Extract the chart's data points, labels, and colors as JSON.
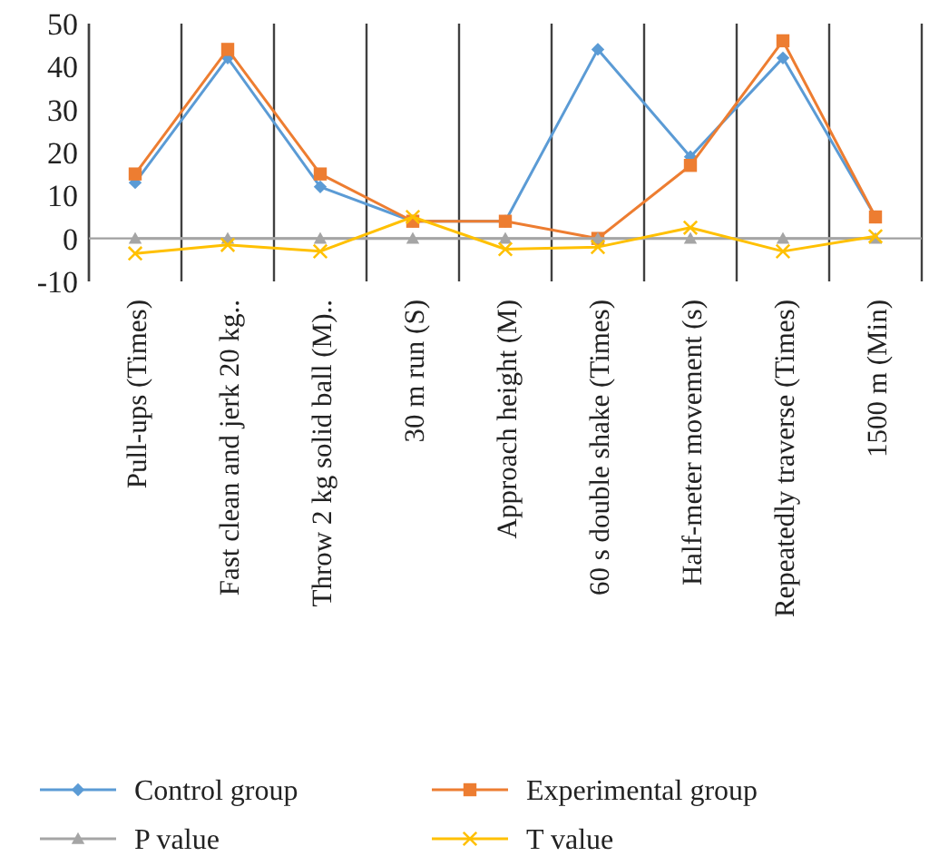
{
  "chart_data": {
    "type": "line",
    "categories": [
      "Pull-ups (Times)",
      "Fast clean and jerk 20 kg..",
      "Throw 2 kg solid ball (M)..",
      "30 m run (S)",
      "Approach height (M)",
      "60 s double shake (Times)",
      "Half-meter movement (s)",
      "Repeatedly traverse (Times)",
      "1500 m (Min)"
    ],
    "series": [
      {
        "name": "Control group",
        "color": "#5b9bd5",
        "marker": "diamond",
        "values": [
          13,
          42,
          12,
          4,
          4,
          44,
          19,
          42,
          5
        ]
      },
      {
        "name": "Experimental group",
        "color": "#ed7d31",
        "marker": "square",
        "values": [
          15,
          44,
          15,
          4,
          4,
          0,
          17,
          46,
          5
        ]
      },
      {
        "name": "P value",
        "color": "#a5a5a5",
        "marker": "triangle",
        "values": [
          0,
          0,
          0,
          0,
          0,
          0,
          0,
          0,
          0
        ]
      },
      {
        "name": "T value",
        "color": "#ffc000",
        "marker": "cross",
        "values": [
          -3.5,
          -1.5,
          -3,
          5,
          -2.5,
          -2,
          2.5,
          -3,
          0.5
        ]
      }
    ],
    "ylim": [
      -10,
      50
    ],
    "yticks": [
      -10,
      0,
      10,
      20,
      30,
      40,
      50
    ],
    "grid": "x",
    "legend": "bottom",
    "line_style": "solid"
  }
}
